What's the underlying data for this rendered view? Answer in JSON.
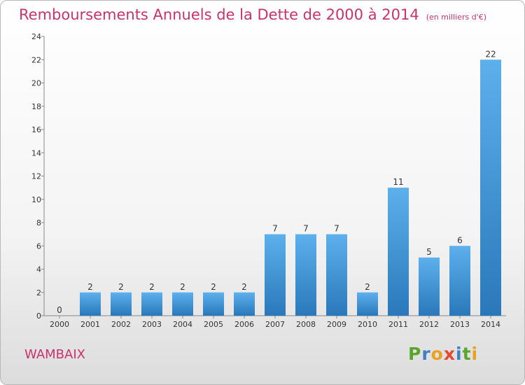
{
  "chart_data": {
    "type": "bar",
    "title": "Remboursements Annuels de la Dette de 2000 à 2014",
    "subtitle": "(en milliers d'€)",
    "categories": [
      "2000",
      "2001",
      "2002",
      "2003",
      "2004",
      "2005",
      "2006",
      "2007",
      "2008",
      "2009",
      "2010",
      "2011",
      "2012",
      "2013",
      "2014"
    ],
    "values": [
      0,
      2,
      2,
      2,
      2,
      2,
      2,
      7,
      7,
      7,
      2,
      11,
      5,
      6,
      22
    ],
    "ylim": [
      0,
      24
    ],
    "yticks": [
      0,
      2,
      4,
      6,
      8,
      10,
      12,
      14,
      16,
      18,
      20,
      22,
      24
    ],
    "grid": false,
    "bar_color": "#3f95d8"
  },
  "footer": {
    "location": "WAMBAIX",
    "logo": "Proxiti"
  },
  "colors": {
    "title": "#c8336a",
    "logo_letters": [
      "#5aa52e",
      "#3f7fc4",
      "#e8a21d",
      "#e54a2e",
      "#3f7fc4",
      "#5aa52e",
      "#e8a21d"
    ]
  }
}
